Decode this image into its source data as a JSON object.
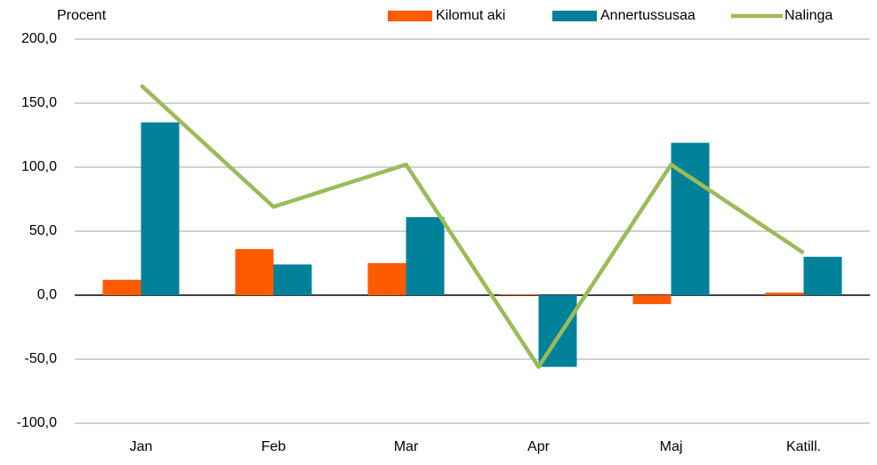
{
  "chart_data": {
    "type": "bar+line",
    "y_label": "Procent",
    "categories": [
      "Jan",
      "Feb",
      "Mar",
      "Apr",
      "Maj",
      "Katill."
    ],
    "series": [
      {
        "name": "Kilomut aki",
        "type": "bar",
        "color": "#ff5a00",
        "values": [
          12,
          36,
          25,
          0.5,
          -7,
          2
        ]
      },
      {
        "name": "Annertussusaa",
        "type": "bar",
        "color": "#00819a",
        "values": [
          135,
          24,
          61,
          -56,
          119,
          30
        ]
      },
      {
        "name": "Nalinga",
        "type": "line",
        "color": "#9bbb59",
        "values": [
          164,
          69,
          102,
          -56,
          102,
          33
        ]
      }
    ],
    "ylim": [
      -100,
      200
    ],
    "yticks": [
      {
        "value": -100,
        "label": "-100,0"
      },
      {
        "value": -50,
        "label": "-50,0"
      },
      {
        "value": 0,
        "label": "0,0"
      },
      {
        "value": 50,
        "label": "50,0"
      },
      {
        "value": 100,
        "label": "100,0"
      },
      {
        "value": 150,
        "label": "150,0"
      },
      {
        "value": 200,
        "label": "200,0"
      }
    ],
    "grid": true,
    "legend": "top-right"
  }
}
